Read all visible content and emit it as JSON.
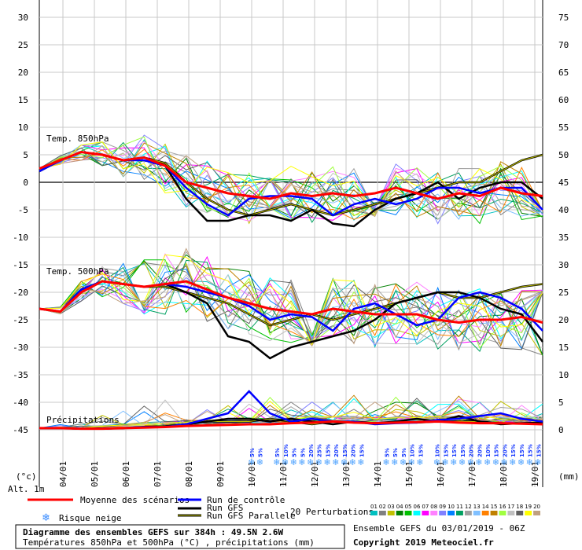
{
  "chart_data": {
    "type": "line",
    "left_axis_unit": "(°c)",
    "right_axis_unit": "(mm)",
    "altitude": "Alt. 1m",
    "left_ticks": [
      30,
      25,
      20,
      15,
      10,
      5,
      0,
      -5,
      -10,
      -15,
      -20,
      -25,
      -30,
      -35,
      -40,
      -45
    ],
    "right_ticks": [
      75,
      70,
      65,
      60,
      55,
      50,
      45,
      40,
      35,
      30,
      25,
      20,
      15,
      10,
      5,
      0
    ],
    "ylim_left": [
      -45,
      30
    ],
    "ylim_right": [
      0,
      75
    ],
    "x_start": "2019-01-03 06Z",
    "x_hours": 384,
    "dates": [
      "04/01",
      "05/01",
      "06/01",
      "07/01",
      "08/01",
      "09/01",
      "10/01",
      "11/01",
      "12/01",
      "13/01",
      "14/01",
      "15/01",
      "16/01",
      "17/01",
      "18/01",
      "19/01"
    ],
    "panels": [
      {
        "label": "Temp. 850hPa"
      },
      {
        "label": "Temp. 500hPa"
      },
      {
        "label": "Précipitations"
      }
    ],
    "series": [
      {
        "name": "Moyenne des scénarios",
        "color": "#ff0000",
        "t850": [
          2.5,
          4,
          5.5,
          5,
          4,
          4.5,
          3,
          0,
          -1,
          -2,
          -2.5,
          -3,
          -2,
          -2.5,
          -2,
          -2.5,
          -2,
          -1,
          -2,
          -3,
          -2,
          -2.5,
          -1,
          -2,
          -2.5
        ],
        "t500": [
          -23,
          -23.5,
          -20,
          -18,
          -18.5,
          -19,
          -18.5,
          -18,
          -19.5,
          -21,
          -22,
          -23,
          -23.5,
          -24,
          -23,
          -23.5,
          -24,
          -24,
          -24,
          -25,
          -25.5,
          -25,
          -25,
          -24.5,
          -25.5
        ],
        "precip": [
          0.3,
          0.3,
          0.2,
          0.2,
          0.3,
          0.4,
          0.5,
          0.7,
          0.8,
          0.9,
          1,
          1,
          1.2,
          1.3,
          1.5,
          1.3,
          1.2,
          1.3,
          1.4,
          1.5,
          1.3,
          1.2,
          1.2,
          1.1,
          1
        ]
      },
      {
        "name": "Run de contrôle",
        "color": "#0000ff",
        "t850": [
          2,
          4,
          5.5,
          5,
          4,
          4,
          3,
          -1,
          -4,
          -6,
          -3,
          -2.5,
          -2.5,
          -3,
          -6,
          -4,
          -3,
          -4,
          -3,
          -1,
          -1,
          -2,
          -1,
          -1,
          -5
        ],
        "t500": [
          -23,
          -23.5,
          -19.5,
          -18,
          -18.5,
          -19,
          -18.5,
          -19,
          -20,
          -21,
          -22.5,
          -25,
          -24,
          -24.5,
          -27,
          -23,
          -22,
          -24,
          -26,
          -25,
          -21,
          -20,
          -21,
          -23,
          -27
        ],
        "precip": [
          0.3,
          0.3,
          0.2,
          0.2,
          0.3,
          0.5,
          0.5,
          1,
          2,
          3,
          7,
          3,
          1.5,
          2,
          1.5,
          1.5,
          1,
          1.2,
          1.3,
          1.8,
          2,
          2.5,
          3,
          2,
          1.5
        ]
      },
      {
        "name": "Run GFS",
        "color": "#000000",
        "t850": [
          2,
          4,
          5.5,
          5,
          4,
          4.5,
          3,
          -3,
          -7,
          -7,
          -6,
          -6,
          -7,
          -5,
          -7.5,
          -8,
          -5,
          -3,
          -2,
          0,
          -3,
          -1,
          0,
          0,
          -3
        ],
        "t500": [
          -23,
          -23.5,
          -19.5,
          -18,
          -18.5,
          -19,
          -18.5,
          -20,
          -22,
          -28,
          -29,
          -32,
          -30,
          -29,
          -28,
          -27,
          -25,
          -22,
          -21,
          -20,
          -20,
          -21,
          -23,
          -24,
          -29
        ],
        "precip": [
          0.3,
          0.3,
          0.2,
          0.2,
          0.3,
          0.5,
          0.6,
          1,
          1.5,
          2,
          2,
          1.5,
          2,
          1.5,
          1,
          1.5,
          1.2,
          1.5,
          2,
          1.5,
          2.5,
          1.5,
          1,
          1.2,
          1.3
        ]
      },
      {
        "name": "Run GFS Parallele",
        "color": "#808000",
        "t850": [
          2,
          4,
          5.5,
          5,
          4,
          4.5,
          3.5,
          0,
          -3,
          -5,
          -6,
          -5,
          -4,
          -5,
          -6,
          -5,
          -4,
          -3,
          -2,
          -1,
          0,
          0,
          2,
          4,
          5
        ],
        "t500": [
          -23,
          -23.5,
          -19.5,
          -18,
          -18.5,
          -19,
          -19,
          -20,
          -21,
          -22,
          -24,
          -26,
          -25,
          -24,
          -25,
          -24,
          -23,
          -22,
          -21,
          -20,
          -21,
          -21,
          -20,
          -19,
          -18.5
        ],
        "precip": [
          0.3,
          0.3,
          0.2,
          0.2,
          0.3,
          0.5,
          0.6,
          1,
          1.5,
          1.5,
          1.5,
          2,
          1.5,
          1,
          1.5,
          1.3,
          1.2,
          1.4,
          1.3,
          1.5,
          1.5,
          1.5,
          1.2,
          1.2,
          1.1
        ]
      },
      {
        "name": "20 Perturbations"
      }
    ],
    "perturbation_codes": [
      "01",
      "02",
      "03",
      "04",
      "05",
      "06",
      "07",
      "08",
      "09",
      "10",
      "11",
      "12",
      "13",
      "14",
      "15",
      "16",
      "17",
      "18",
      "19",
      "20"
    ],
    "perturbation_colors": [
      "#00c0c0",
      "#808080",
      "#c0c000",
      "#008000",
      "#00c000",
      "#00ffff",
      "#ff00ff",
      "#ff80ff",
      "#8080ff",
      "#0080ff",
      "#00a060",
      "#a0a0a0",
      "#80c0ff",
      "#ff8000",
      "#c08000",
      "#a0ff40",
      "#c0c0c0",
      "#606060",
      "#ffff00",
      "#c0a080"
    ],
    "snow_risk": [
      {
        "slot": 0,
        "pct": "5%"
      },
      {
        "slot": 1,
        "pct": "5%"
      },
      {
        "slot": 3,
        "pct": "5%"
      },
      {
        "slot": 4,
        "pct": "10%"
      },
      {
        "slot": 5,
        "pct": "5%"
      },
      {
        "slot": 6,
        "pct": "5%"
      },
      {
        "slot": 7,
        "pct": "20%"
      },
      {
        "slot": 8,
        "pct": "25%"
      },
      {
        "slot": 9,
        "pct": "15%"
      },
      {
        "slot": 10,
        "pct": "20%"
      },
      {
        "slot": 11,
        "pct": "15%"
      },
      {
        "slot": 12,
        "pct": "20%"
      },
      {
        "slot": 13,
        "pct": "15%"
      },
      {
        "slot": 16,
        "pct": "5%"
      },
      {
        "slot": 17,
        "pct": "5%"
      },
      {
        "slot": 18,
        "pct": "5%"
      },
      {
        "slot": 19,
        "pct": "10%"
      },
      {
        "slot": 20,
        "pct": "15%"
      },
      {
        "slot": 22,
        "pct": "10%"
      },
      {
        "slot": 23,
        "pct": "15%"
      },
      {
        "slot": 24,
        "pct": "15%"
      },
      {
        "slot": 25,
        "pct": "15%"
      },
      {
        "slot": 26,
        "pct": "20%"
      },
      {
        "slot": 27,
        "pct": "20%"
      },
      {
        "slot": 28,
        "pct": "10%"
      },
      {
        "slot": 29,
        "pct": "15%"
      },
      {
        "slot": 30,
        "pct": "20%"
      },
      {
        "slot": 31,
        "pct": "15%"
      },
      {
        "slot": 32,
        "pct": "15%"
      },
      {
        "slot": 33,
        "pct": "15%"
      },
      {
        "slot": 34,
        "pct": "15%"
      }
    ]
  },
  "legend": {
    "risk": "Risque neige",
    "ensemble": "Ensemble GEFS du 03/01/2019 - 06Z",
    "copyright": "Copyright 2019 Meteociel.fr"
  },
  "footer": {
    "title": "Diagramme des ensembles GEFS sur 384h : 49.5N 2.6W",
    "subtitle": "Températures 850hPa et 500hPa (°C) , précipitations (mm)"
  }
}
